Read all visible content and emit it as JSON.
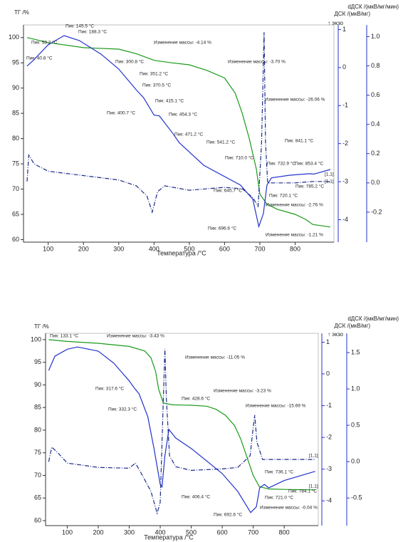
{
  "chart_data": [
    {
      "type": "line",
      "y_label": "ТГ /%",
      "y2_label": "ДСК /(мкВ/мг)",
      "y3_label": "dДСК /(мкВ/мг/мин)",
      "exo_label": "↑ экзо",
      "x_label": "Температура /°C",
      "xlim": [
        30,
        910
      ],
      "xticks": [
        100,
        200,
        300,
        400,
        500,
        600,
        700,
        800
      ],
      "ylim": [
        59.5,
        102.5
      ],
      "yticks": [
        60,
        65,
        70,
        75,
        80,
        85,
        90,
        95,
        100
      ],
      "y2lim": [
        -4.59,
        1.12
      ],
      "y2ticks": [
        -4,
        -3,
        -2,
        -1,
        0,
        1
      ],
      "y3lim": [
        -0.405,
        1.08
      ],
      "y3ticks": [
        -0.2,
        {
          "value": 0,
          "label": "0.0"
        },
        0.2,
        0.4,
        0.6,
        0.8,
        {
          "value": 1,
          "label": "1.0"
        }
      ],
      "series": [
        {
          "color": "#1a9a1a",
          "axis": "y",
          "x": [
            40,
            100,
            200,
            300,
            350,
            400,
            450,
            500,
            550,
            600,
            630,
            650,
            670,
            690,
            700,
            720,
            750,
            800,
            830,
            850,
            900
          ],
          "values": [
            100,
            99,
            98,
            97.7,
            96.8,
            95.5,
            95,
            94.6,
            93.5,
            92,
            89,
            85,
            80,
            74,
            69,
            67,
            66,
            65,
            64,
            63,
            62.5
          ]
        },
        {
          "color": "#2233cc",
          "axis": "y2",
          "x": [
            40,
            58,
            100,
            145,
            188,
            250,
            300,
            351,
            370,
            400,
            415,
            454,
            471,
            541,
            645,
            680,
            697,
            710,
            720,
            733,
            785,
            841,
            853,
            900
          ],
          "values": [
            0.04,
            0.19,
            0.6,
            0.84,
            0.71,
            0.35,
            -0.04,
            -0.6,
            -0.79,
            -1.25,
            -1.27,
            -1.74,
            -1.97,
            -2.57,
            -3.09,
            -3.46,
            -4.18,
            -3.84,
            -3.09,
            -2.9,
            -2.83,
            -2.79,
            -2.8,
            -2.68
          ]
        },
        {
          "color": "#1a2a88",
          "axis": "y3",
          "dash": "6 2 1 2",
          "x": [
            40,
            45,
            60,
            100,
            200,
            300,
            350,
            380,
            395,
            410,
            430,
            500,
            600,
            650,
            680,
            695,
            705,
            712,
            716,
            722,
            750,
            800,
            850,
            900
          ],
          "values": [
            0.01,
            0.19,
            0.13,
            0.08,
            0.05,
            0.02,
            -0.02,
            -0.09,
            -0.2,
            -0.06,
            -0.02,
            -0.05,
            -0.03,
            -0.04,
            -0.1,
            -0.16,
            0.28,
            1.03,
            0.28,
            0,
            0,
            0,
            0.01,
            0.01
          ]
        }
      ],
      "annotations": [
        {
          "text": "Пик: 58.2 °C",
          "color": "#2233cc"
        },
        {
          "text": "Пик: 145.5 °C",
          "color": "#2233cc"
        },
        {
          "text": "Пик: 188.3 °C",
          "color": "#2233cc"
        },
        {
          "text": "Пик: 40.8 °C",
          "color": "#2233cc"
        },
        {
          "text": "Пик: 300.8 °C",
          "color": "#2233cc"
        },
        {
          "text": "Пик: 351.2 °C",
          "color": "#2233cc"
        },
        {
          "text": "Пик: 370.5 °C",
          "color": "#2233cc"
        },
        {
          "text": "Пик: 415.1 °C",
          "color": "#2233cc"
        },
        {
          "text": "Пик: 454.3 °C",
          "color": "#2233cc"
        },
        {
          "text": "Пик: 400.7 °C",
          "color": "#2233cc"
        },
        {
          "text": "Пик: 471.2 °C",
          "color": "#2233cc"
        },
        {
          "text": "Пик: 541.2 °C",
          "color": "#2233cc"
        },
        {
          "text": "Пик: 710.0 °C",
          "color": "#2233cc"
        },
        {
          "text": "Пик: 645.7 °C",
          "color": "#2233cc"
        },
        {
          "text": "Пик: 696.6 °C",
          "color": "#2233cc"
        },
        {
          "text": "Пик: 841.1 °C",
          "color": "#2233cc"
        },
        {
          "text": "Пик: 732.9 °C",
          "color": "#2233cc"
        },
        {
          "text": "Пик: 853.4 °C",
          "color": "#2233cc"
        },
        {
          "text": "Пик: 785.2 °C",
          "color": "#2233cc"
        },
        {
          "text": "Пик: 720.1 °C",
          "color": "#2233cc"
        },
        {
          "text": "[1,1]",
          "color": "#2233cc"
        },
        {
          "text": "[1,1]",
          "color": "#2233cc"
        },
        {
          "text": "Изменение массы: -4.14 %",
          "color": "#1a9a1a"
        },
        {
          "text": "Изменение массы: -3.70 %",
          "color": "#1a9a1a"
        },
        {
          "text": "Изменение массы: -26.06 %",
          "color": "#1a9a1a"
        },
        {
          "text": "Изменение массы: -2.76 %",
          "color": "#1a9a1a"
        },
        {
          "text": "Изменение массы: -1.21 %",
          "color": "#1a9a1a"
        }
      ]
    },
    {
      "type": "line",
      "y_label": "ТГ /%",
      "y2_label": "ДСК /(мкВ/мг)",
      "y3_label": "dДСК /(мкВ/мг/мин)",
      "exo_label": "↑ экзо",
      "x_label": "Температура /°C",
      "xlim": [
        30,
        910
      ],
      "xticks": [
        100,
        200,
        300,
        400,
        500,
        600,
        700,
        800
      ],
      "ylim": [
        58.9,
        101.4
      ],
      "yticks": [
        60,
        65,
        70,
        75,
        80,
        85,
        90,
        95,
        100
      ],
      "y2lim": [
        -4.78,
        1.28
      ],
      "y2ticks": [
        -4,
        -3,
        -2,
        -1,
        0,
        1
      ],
      "y3lim": [
        -0.88,
        1.765
      ],
      "y3ticks": [
        -0.5,
        {
          "value": 0,
          "label": "0.0"
        },
        0.5,
        {
          "value": 1,
          "label": "1.0"
        },
        1.5
      ],
      "series": [
        {
          "color": "#1a9a1a",
          "axis": "y",
          "x": [
            40,
            100,
            200,
            300,
            350,
            370,
            385,
            395,
            410,
            440,
            500,
            550,
            580,
            610,
            640,
            660,
            680,
            700,
            720,
            750,
            800,
            900
          ],
          "values": [
            100,
            99.6,
            99.2,
            98.5,
            97.5,
            96,
            93,
            89,
            86,
            85.6,
            85.5,
            85.3,
            84.6,
            83.3,
            81,
            78,
            74,
            70,
            67.5,
            67,
            66.9,
            66.8
          ]
        },
        {
          "color": "#2233cc",
          "axis": "y2",
          "x": [
            40,
            60,
            100,
            133,
            200,
            250,
            300,
            317,
            332,
            360,
            380,
            400,
            406,
            415,
            428,
            450,
            500,
            600,
            650,
            692,
            710,
            721,
            736,
            750,
            800,
            900
          ],
          "values": [
            0.11,
            0.56,
            0.78,
            0.85,
            0.72,
            0.34,
            -0.22,
            -0.45,
            -0.63,
            -1.35,
            -2.35,
            -3.48,
            -3.56,
            -2.58,
            -1.75,
            -2.02,
            -2.35,
            -3.14,
            -3.7,
            -4.37,
            -4.19,
            -3.59,
            -3.48,
            -3.59,
            -3.36,
            -3.07
          ]
        },
        {
          "color": "#1a2a88",
          "axis": "y3",
          "dash": "6 2 1 2",
          "x": [
            40,
            50,
            70,
            100,
            200,
            300,
            320,
            340,
            370,
            390,
            400,
            410,
            415,
            420,
            430,
            450,
            500,
            600,
            650,
            690,
            700,
            705,
            712,
            730,
            800,
            900
          ],
          "values": [
            0,
            0.2,
            0.12,
            -0.02,
            -0.08,
            -0.09,
            -0.02,
            -0.17,
            -0.41,
            -0.71,
            -0.56,
            0.86,
            1.55,
            0.86,
            0.08,
            -0.07,
            -0.12,
            -0.1,
            -0.08,
            0.08,
            0.47,
            0.64,
            0.27,
            0.03,
            0.03,
            0.03
          ]
        }
      ],
      "annotations": [
        {
          "text": "Пик: 133.1 °C",
          "color": "#2233cc"
        },
        {
          "text": "Пик: 317.6 °C",
          "color": "#2233cc"
        },
        {
          "text": "Пик: 332.3 °C",
          "color": "#2233cc"
        },
        {
          "text": "Пик: 428.6 °C",
          "color": "#2233cc"
        },
        {
          "text": "Пик: 406.4 °C",
          "color": "#2233cc"
        },
        {
          "text": "Пик: 692.6 °C",
          "color": "#2233cc"
        },
        {
          "text": "Пик: 736.1 °C",
          "color": "#2233cc"
        },
        {
          "text": "Пик: 721.0 °C",
          "color": "#2233cc"
        },
        {
          "text": "Пик: 784.1 °C",
          "color": "#2233cc"
        },
        {
          "text": "[1,1]",
          "color": "#2233cc"
        },
        {
          "text": "[1,1]",
          "color": "#2233cc"
        },
        {
          "text": "Изменение массы: -3.43 %",
          "color": "#1a9a1a"
        },
        {
          "text": "Изменение массы: -11.05 %",
          "color": "#1a9a1a"
        },
        {
          "text": "Изменение массы: -3.23 %",
          "color": "#1a9a1a"
        },
        {
          "text": "Изменение массы: -15.69 %",
          "color": "#1a9a1a"
        },
        {
          "text": "Изменение массы: -0.04 %",
          "color": "#1a9a1a"
        }
      ]
    }
  ]
}
